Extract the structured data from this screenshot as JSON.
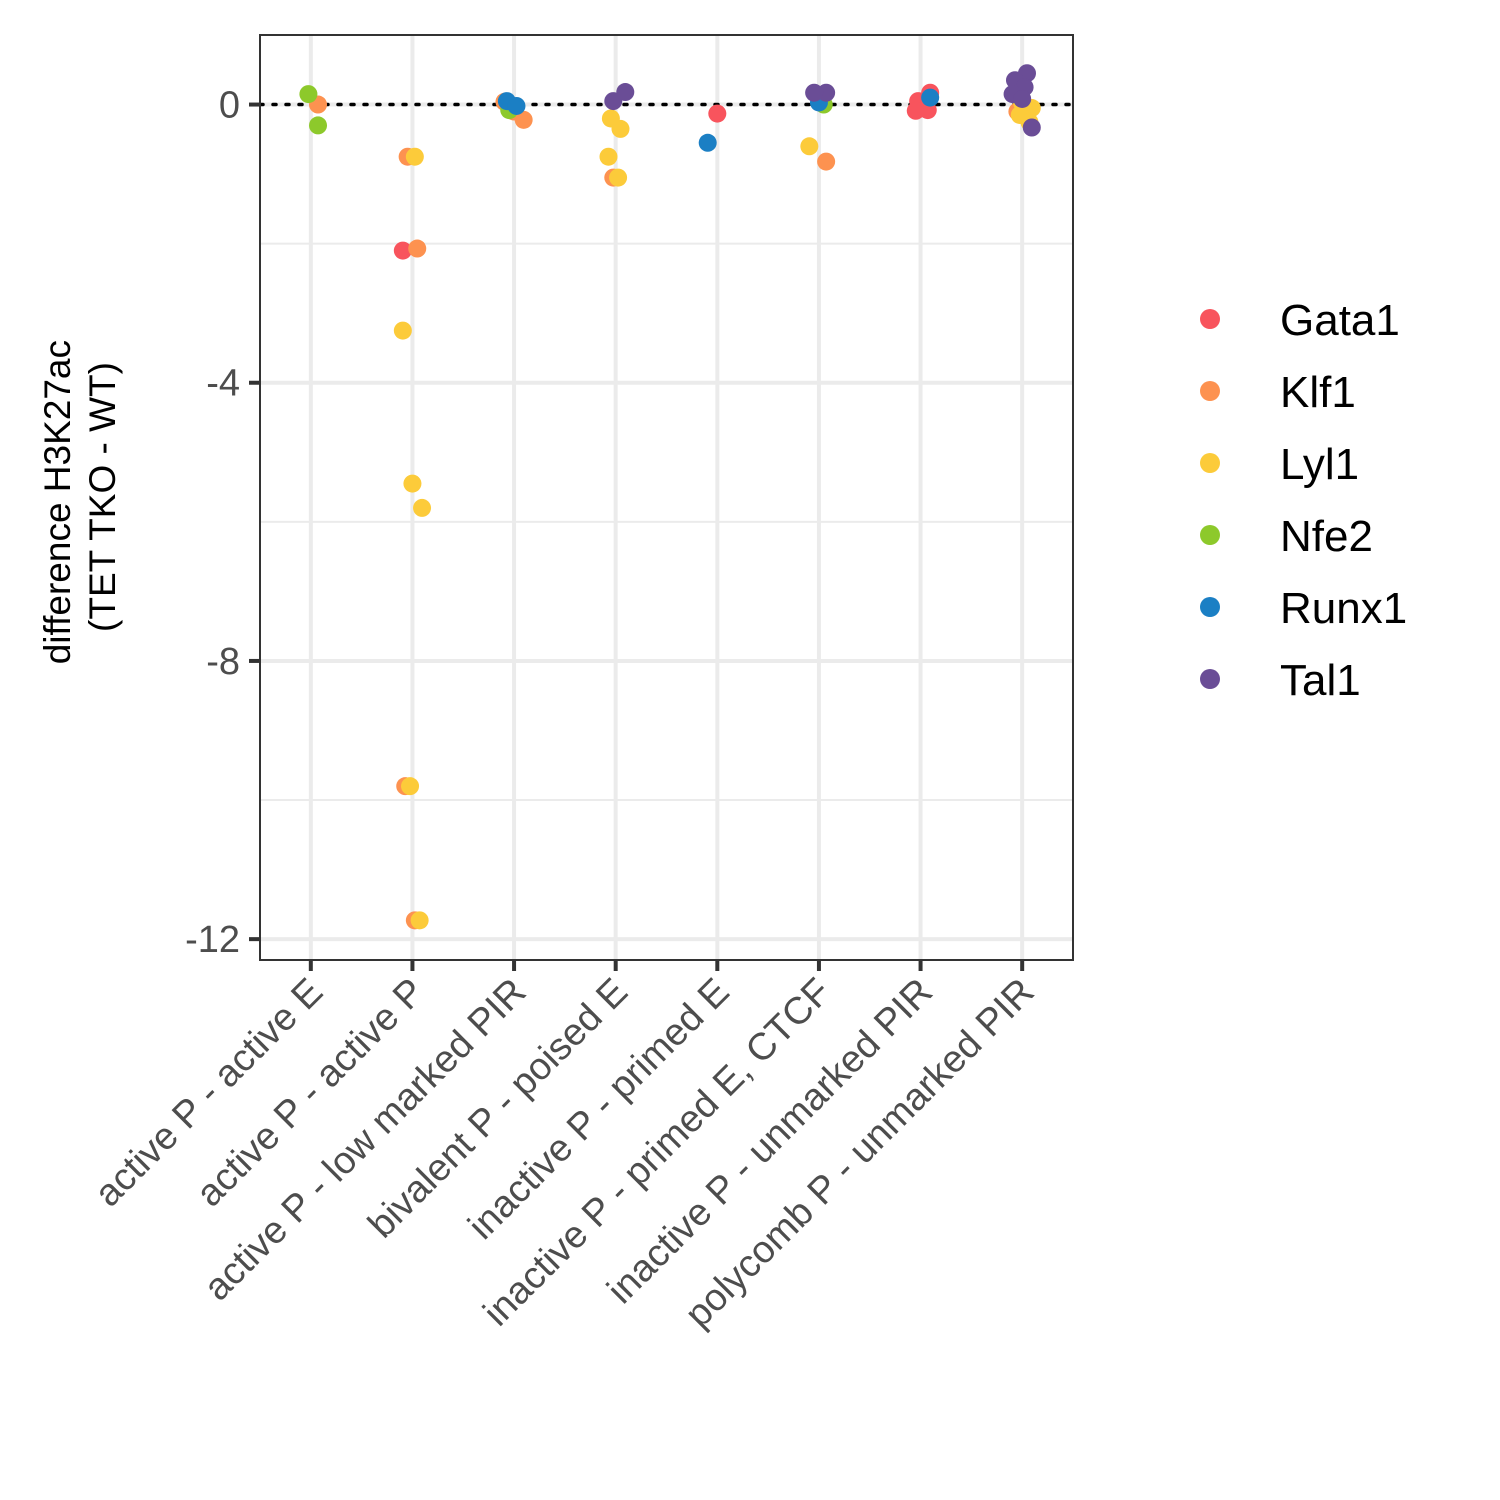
{
  "chart_data": {
    "type": "scatter",
    "title": "",
    "xlabel": "",
    "ylabel_lines": [
      "difference H3K27ac",
      "(TET TKO - WT)"
    ],
    "ylim": [
      -12.3,
      1.0
    ],
    "yticks": [
      0,
      -4,
      -8,
      -12
    ],
    "ytick_labels": [
      "0",
      "-4",
      "-8",
      "-12"
    ],
    "reference_line": {
      "y": 0,
      "style": "dotted"
    },
    "grid": true,
    "legend_position": "right",
    "categories": [
      "active P - active E",
      "active P - active P",
      "active P - low marked PIR",
      "bivalent P - poised E",
      "inactive P - primed E",
      "inactive P - primed E, CTCF",
      "inactive P - unmarked PIR",
      "polycomb P - unmarked PIR"
    ],
    "series": [
      {
        "name": "Gata1",
        "color": "#f8545d",
        "points": [
          {
            "x": "active P - active P",
            "y": -2.1
          },
          {
            "x": "inactive P - primed E",
            "y": -0.13
          },
          {
            "x": "inactive P - unmarked PIR",
            "y": 0.17
          },
          {
            "x": "inactive P - unmarked PIR",
            "y": 0.05
          },
          {
            "x": "inactive P - unmarked PIR",
            "y": -0.08
          },
          {
            "x": "inactive P - unmarked PIR",
            "y": -0.09
          }
        ]
      },
      {
        "name": "Klf1",
        "color": "#fd9250",
        "points": [
          {
            "x": "active P - active E",
            "y": 0.0
          },
          {
            "x": "active P - active P",
            "y": -0.75
          },
          {
            "x": "active P - active P",
            "y": -2.07
          },
          {
            "x": "active P - active P",
            "y": -9.8
          },
          {
            "x": "active P - active P",
            "y": -11.73
          },
          {
            "x": "active P - low marked PIR",
            "y": 0.04
          },
          {
            "x": "active P - low marked PIR",
            "y": -0.1
          },
          {
            "x": "active P - low marked PIR",
            "y": -0.22
          },
          {
            "x": "bivalent P - poised E",
            "y": -1.05
          },
          {
            "x": "inactive P - primed E, CTCF",
            "y": -0.82
          },
          {
            "x": "polycomb P - unmarked PIR",
            "y": -0.1
          }
        ]
      },
      {
        "name": "Lyl1",
        "color": "#fccb3a",
        "points": [
          {
            "x": "active P - active P",
            "y": -0.75
          },
          {
            "x": "active P - active P",
            "y": -3.25
          },
          {
            "x": "active P - active P",
            "y": -5.45
          },
          {
            "x": "active P - active P",
            "y": -5.8
          },
          {
            "x": "active P - active P",
            "y": -9.8
          },
          {
            "x": "active P - active P",
            "y": -11.73
          },
          {
            "x": "bivalent P - poised E",
            "y": -0.2
          },
          {
            "x": "bivalent P - poised E",
            "y": -0.35
          },
          {
            "x": "bivalent P - poised E",
            "y": -0.75
          },
          {
            "x": "bivalent P - poised E",
            "y": -1.05
          },
          {
            "x": "inactive P - primed E, CTCF",
            "y": -0.6
          },
          {
            "x": "polycomb P - unmarked PIR",
            "y": 0.02
          },
          {
            "x": "polycomb P - unmarked PIR",
            "y": -0.05
          },
          {
            "x": "polycomb P - unmarked PIR",
            "y": -0.15
          },
          {
            "x": "polycomb P - unmarked PIR",
            "y": -0.25
          }
        ]
      },
      {
        "name": "Nfe2",
        "color": "#8dc92b",
        "points": [
          {
            "x": "active P - active E",
            "y": 0.15
          },
          {
            "x": "active P - active E",
            "y": -0.3
          },
          {
            "x": "active P - low marked PIR",
            "y": -0.08
          },
          {
            "x": "inactive P - primed E, CTCF",
            "y": 0.0
          }
        ]
      },
      {
        "name": "Runx1",
        "color": "#1b7fc4",
        "points": [
          {
            "x": "active P - low marked PIR",
            "y": 0.05
          },
          {
            "x": "active P - low marked PIR",
            "y": -0.02
          },
          {
            "x": "inactive P - primed E",
            "y": -0.55
          },
          {
            "x": "inactive P - primed E, CTCF",
            "y": 0.03
          },
          {
            "x": "inactive P - unmarked PIR",
            "y": 0.1
          }
        ]
      },
      {
        "name": "Tal1",
        "color": "#6a4d96",
        "points": [
          {
            "x": "bivalent P - poised E",
            "y": 0.18
          },
          {
            "x": "bivalent P - poised E",
            "y": 0.05
          },
          {
            "x": "inactive P - primed E, CTCF",
            "y": 0.17
          },
          {
            "x": "inactive P - primed E, CTCF",
            "y": 0.17
          },
          {
            "x": "polycomb P - unmarked PIR",
            "y": 0.45
          },
          {
            "x": "polycomb P - unmarked PIR",
            "y": 0.35
          },
          {
            "x": "polycomb P - unmarked PIR",
            "y": 0.25
          },
          {
            "x": "polycomb P - unmarked PIR",
            "y": 0.15
          },
          {
            "x": "polycomb P - unmarked PIR",
            "y": 0.08
          },
          {
            "x": "polycomb P - unmarked PIR",
            "y": -0.33
          }
        ]
      }
    ]
  }
}
